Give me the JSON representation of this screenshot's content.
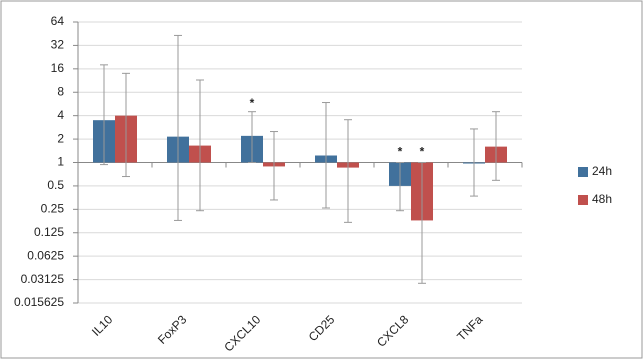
{
  "chart_data": {
    "type": "bar",
    "log_base": 2,
    "categories": [
      "IL10",
      "FoxP3",
      "CXCL10",
      "CD25",
      "CXCL8",
      "TNFa"
    ],
    "series": [
      {
        "name": "24h",
        "color": "#41719c",
        "values": [
          3.5,
          2.15,
          2.2,
          1.23,
          0.5,
          0.97
        ],
        "error_low": [
          0.94,
          0.18,
          1,
          0.26,
          0.24,
          0.37
        ],
        "error_high": [
          18,
          43,
          4.5,
          5.9,
          1,
          2.7
        ],
        "markers": [
          null,
          null,
          "*",
          null,
          "*",
          null
        ]
      },
      {
        "name": "48h",
        "color": "#c0504d",
        "values": [
          4,
          1.65,
          0.89,
          0.86,
          0.18,
          1.6
        ],
        "error_low": [
          0.66,
          0.24,
          0.33,
          0.17,
          0.028,
          0.59
        ],
        "error_high": [
          14,
          11.5,
          2.5,
          3.55,
          1,
          4.5
        ],
        "markers": [
          null,
          null,
          null,
          null,
          "*",
          null
        ]
      }
    ],
    "ylim": [
      0.015625,
      64
    ],
    "yticks": [
      0.015625,
      0.03125,
      0.0625,
      0.125,
      0.25,
      0.5,
      1,
      2,
      4,
      8,
      16,
      32,
      64
    ],
    "grid": true,
    "legend": "right"
  }
}
